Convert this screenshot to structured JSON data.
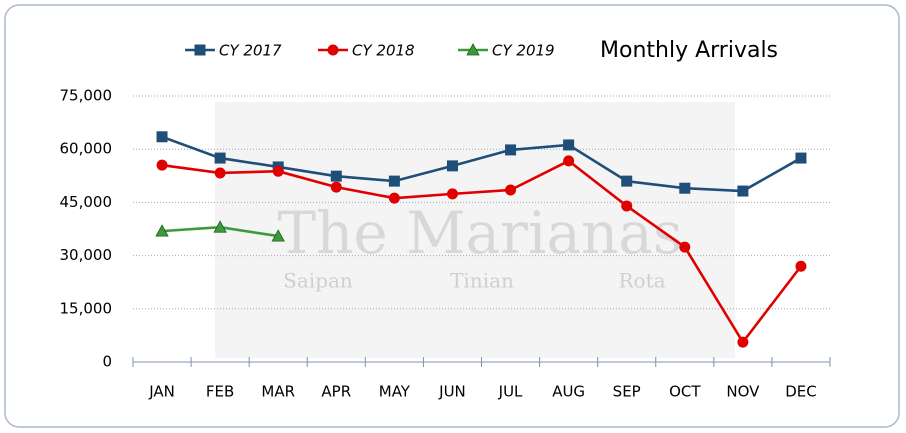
{
  "chart_data": {
    "type": "line",
    "title": "Monthly Arrivals",
    "watermark": {
      "title": "The Marianas",
      "islands": [
        "Saipan",
        "Tinian",
        "Rota"
      ]
    },
    "categories": [
      "JAN",
      "FEB",
      "MAR",
      "APR",
      "MAY",
      "JUN",
      "JUL",
      "AUG",
      "SEP",
      "OCT",
      "NOV",
      "DEC"
    ],
    "series": [
      {
        "name": "CY 2017",
        "color": "#1f4e79",
        "marker": "square",
        "values": [
          63500,
          57500,
          55000,
          52400,
          51000,
          55300,
          59800,
          61200,
          51000,
          49000,
          48200,
          57500
        ]
      },
      {
        "name": "CY 2018",
        "color": "#e00000",
        "marker": "circle",
        "values": [
          55500,
          53300,
          53800,
          49300,
          46200,
          47400,
          48500,
          56700,
          44000,
          32400,
          5600,
          27000
        ]
      },
      {
        "name": "CY 2019",
        "color": "#3c9a3c",
        "marker": "triangle",
        "values": [
          36900,
          38000,
          35500,
          null,
          null,
          null,
          null,
          null,
          null,
          null,
          null,
          null
        ]
      }
    ],
    "ylim": [
      0,
      75000
    ],
    "yticks": [
      0,
      {
        "value": 15000,
        "label": "15,000"
      },
      {
        "value": 30000,
        "label": "30,000"
      },
      {
        "value": 45000,
        "label": "45,000"
      },
      {
        "value": 60000,
        "label": "60,000"
      },
      {
        "value": 75000,
        "label": "75,000"
      }
    ],
    "grid": true,
    "legend": "top"
  }
}
